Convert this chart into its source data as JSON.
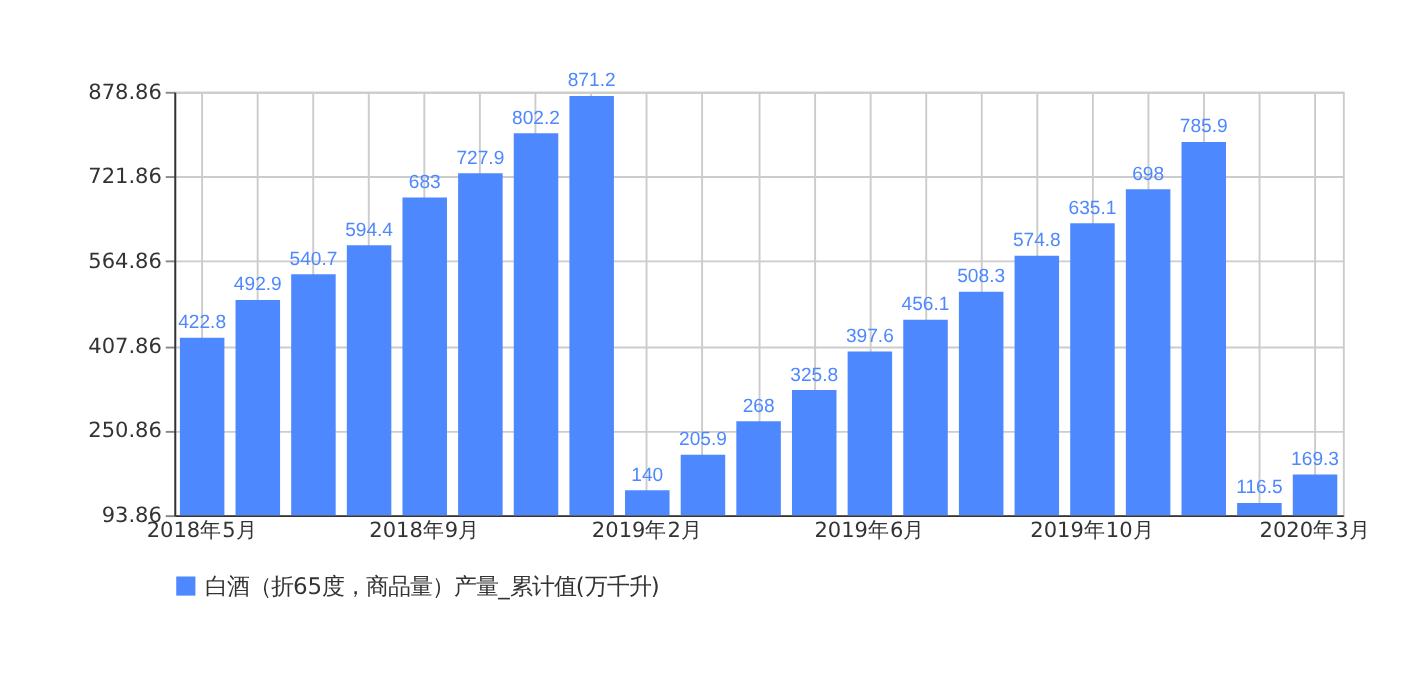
{
  "chart_data": {
    "type": "bar",
    "categories": [
      "2018年5月",
      null,
      null,
      null,
      "2018年9月",
      null,
      null,
      null,
      "2019年2月",
      null,
      null,
      null,
      "2019年6月",
      null,
      null,
      null,
      "2019年10月",
      null,
      null,
      null,
      "2020年3月"
    ],
    "series": [
      {
        "name": "白酒（折65度，商品量）产量_累计值(万千升)",
        "color": "#4e88fe",
        "values": [
          422.8,
          492.9,
          540.7,
          594.4,
          683,
          727.9,
          802.2,
          871.2,
          140,
          205.9,
          268,
          325.8,
          397.6,
          456.1,
          508.3,
          574.8,
          635.1,
          698,
          785.9,
          116.5,
          169.3
        ]
      }
    ],
    "ylim": [
      93.86,
      878.86
    ],
    "yticks": [
      93.86,
      250.86,
      407.86,
      564.86,
      721.86,
      878.86
    ],
    "grid": true,
    "legend": "bottom",
    "data_labels": true
  }
}
